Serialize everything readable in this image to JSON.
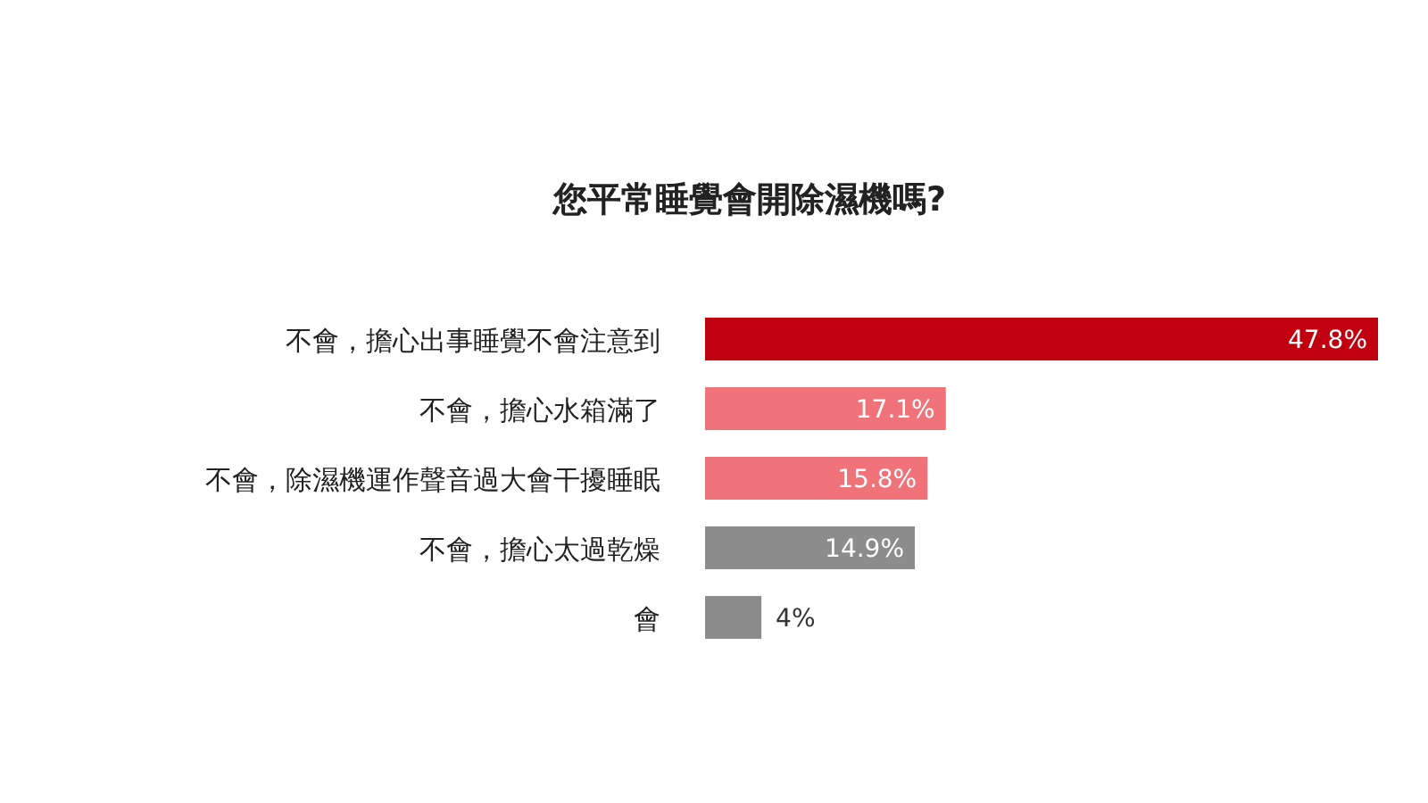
{
  "chart_data": {
    "type": "bar",
    "orientation": "horizontal",
    "title": "您平常睡覺會開除濕機嗎?",
    "categories": [
      "不會，擔心出事睡覺不會注意到",
      "不會，擔心水箱滿了",
      "不會，除濕機運作聲音過大會干擾睡眠",
      "不會，擔心太過乾燥",
      "會"
    ],
    "values": [
      47.8,
      17.1,
      15.8,
      14.9,
      4
    ],
    "colors": [
      "#c0000f",
      "#f0737a",
      "#f0737a",
      "#8c8c8c",
      "#8c8c8c"
    ],
    "value_labels": [
      "47.8%",
      "17.1%",
      "15.8%",
      "14.9%",
      "4%"
    ]
  }
}
